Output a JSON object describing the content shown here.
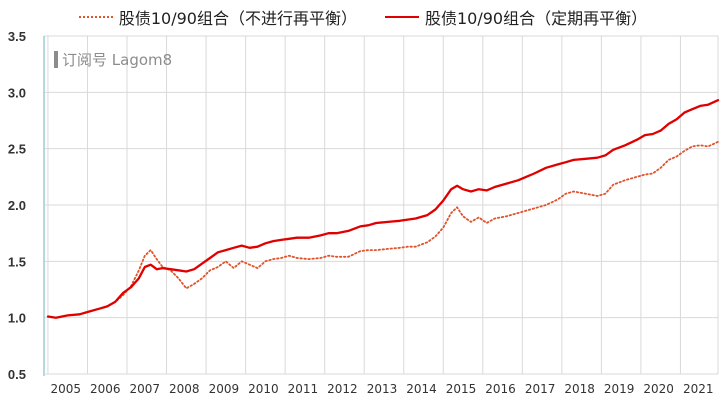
{
  "legend": {
    "series_a": "股债10/90组合（不进行再平衡）",
    "series_b": "股债10/90组合（定期再平衡）"
  },
  "watermark": "订阅号 Lagom8",
  "colors": {
    "no_rebalance": "#e0532b",
    "rebalance": "#e00000",
    "grid": "#d9d9d9",
    "axis": "#9ccdd6"
  },
  "chart_data": {
    "type": "line",
    "title": "",
    "xlabel": "",
    "ylabel": "",
    "ylim": [
      0.5,
      3.5
    ],
    "xlim": [
      2004.9,
      2021.95
    ],
    "yticks": [
      "0.5",
      "1.0",
      "1.5",
      "2.0",
      "2.5",
      "3.0",
      "3.5"
    ],
    "xticks": [
      "2005",
      "2006",
      "2007",
      "2008",
      "2009",
      "2010",
      "2011",
      "2012",
      "2013",
      "2014",
      "2015",
      "2016",
      "2017",
      "2018",
      "2019",
      "2020",
      "2021"
    ],
    "grid": true,
    "legend_position": "top",
    "series": [
      {
        "name": "股债10/90组合（不进行再平衡）",
        "style": "dotted",
        "x": [
          2005.0,
          2005.2,
          2005.5,
          2005.8,
          2006.0,
          2006.3,
          2006.5,
          2006.7,
          2006.9,
          2007.1,
          2007.3,
          2007.45,
          2007.6,
          2007.75,
          2007.9,
          2008.1,
          2008.3,
          2008.5,
          2008.7,
          2008.9,
          2009.1,
          2009.3,
          2009.5,
          2009.7,
          2009.9,
          2010.1,
          2010.3,
          2010.5,
          2010.7,
          2010.9,
          2011.1,
          2011.3,
          2011.6,
          2011.9,
          2012.1,
          2012.3,
          2012.6,
          2012.9,
          2013.1,
          2013.3,
          2013.6,
          2013.9,
          2014.1,
          2014.3,
          2014.6,
          2014.8,
          2015.0,
          2015.2,
          2015.35,
          2015.5,
          2015.7,
          2015.9,
          2016.1,
          2016.3,
          2016.6,
          2016.9,
          2017.1,
          2017.3,
          2017.6,
          2017.9,
          2018.1,
          2018.3,
          2018.6,
          2018.9,
          2019.1,
          2019.3,
          2019.6,
          2019.9,
          2020.1,
          2020.3,
          2020.5,
          2020.7,
          2020.9,
          2021.1,
          2021.3,
          2021.5,
          2021.7,
          2021.95
        ],
        "values": [
          1.01,
          1.0,
          1.02,
          1.03,
          1.05,
          1.08,
          1.1,
          1.14,
          1.2,
          1.28,
          1.42,
          1.55,
          1.6,
          1.52,
          1.45,
          1.42,
          1.35,
          1.26,
          1.3,
          1.35,
          1.42,
          1.45,
          1.5,
          1.44,
          1.5,
          1.47,
          1.44,
          1.5,
          1.52,
          1.53,
          1.55,
          1.53,
          1.52,
          1.53,
          1.55,
          1.54,
          1.54,
          1.59,
          1.6,
          1.6,
          1.61,
          1.62,
          1.63,
          1.63,
          1.67,
          1.72,
          1.8,
          1.93,
          1.98,
          1.9,
          1.85,
          1.89,
          1.84,
          1.88,
          1.9,
          1.93,
          1.95,
          1.97,
          2.0,
          2.05,
          2.1,
          2.12,
          2.1,
          2.08,
          2.1,
          2.18,
          2.22,
          2.25,
          2.27,
          2.28,
          2.33,
          2.4,
          2.43,
          2.48,
          2.52,
          2.53,
          2.52,
          2.56
        ]
      },
      {
        "name": "股债10/90组合（定期再平衡）",
        "style": "solid",
        "x": [
          2005.0,
          2005.2,
          2005.5,
          2005.8,
          2006.0,
          2006.3,
          2006.5,
          2006.7,
          2006.9,
          2007.1,
          2007.3,
          2007.45,
          2007.6,
          2007.75,
          2007.9,
          2008.1,
          2008.3,
          2008.5,
          2008.7,
          2008.9,
          2009.1,
          2009.3,
          2009.5,
          2009.7,
          2009.9,
          2010.1,
          2010.3,
          2010.5,
          2010.7,
          2010.9,
          2011.1,
          2011.3,
          2011.6,
          2011.9,
          2012.1,
          2012.3,
          2012.6,
          2012.9,
          2013.1,
          2013.3,
          2013.6,
          2013.9,
          2014.1,
          2014.3,
          2014.6,
          2014.8,
          2015.0,
          2015.2,
          2015.35,
          2015.5,
          2015.7,
          2015.9,
          2016.1,
          2016.3,
          2016.6,
          2016.9,
          2017.1,
          2017.3,
          2017.6,
          2017.9,
          2018.1,
          2018.3,
          2018.6,
          2018.9,
          2019.1,
          2019.3,
          2019.6,
          2019.9,
          2020.1,
          2020.3,
          2020.5,
          2020.7,
          2020.9,
          2021.1,
          2021.3,
          2021.5,
          2021.7,
          2021.95
        ],
        "values": [
          1.01,
          1.0,
          1.02,
          1.03,
          1.05,
          1.08,
          1.1,
          1.14,
          1.22,
          1.27,
          1.35,
          1.45,
          1.47,
          1.43,
          1.44,
          1.43,
          1.42,
          1.41,
          1.43,
          1.48,
          1.53,
          1.58,
          1.6,
          1.62,
          1.64,
          1.62,
          1.63,
          1.66,
          1.68,
          1.69,
          1.7,
          1.71,
          1.71,
          1.73,
          1.75,
          1.75,
          1.77,
          1.81,
          1.82,
          1.84,
          1.85,
          1.86,
          1.87,
          1.88,
          1.91,
          1.96,
          2.04,
          2.14,
          2.17,
          2.14,
          2.12,
          2.14,
          2.13,
          2.16,
          2.19,
          2.22,
          2.25,
          2.28,
          2.33,
          2.36,
          2.38,
          2.4,
          2.41,
          2.42,
          2.44,
          2.49,
          2.53,
          2.58,
          2.62,
          2.63,
          2.66,
          2.72,
          2.76,
          2.82,
          2.85,
          2.88,
          2.89,
          2.93
        ]
      }
    ]
  }
}
